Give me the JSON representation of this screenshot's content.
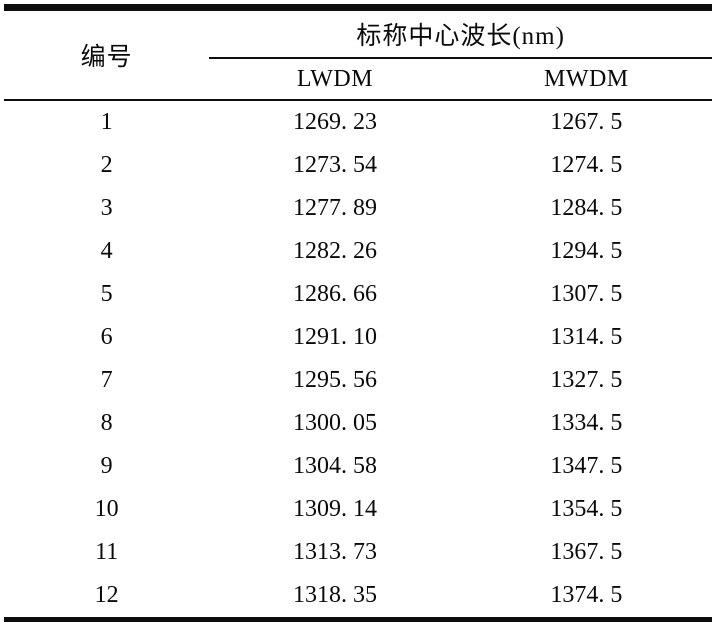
{
  "table": {
    "col1_header": "编号",
    "group_header": "标称中心波长(nm)",
    "sub_headers": {
      "lwdm": "LWDM",
      "mwdm": "MWDM"
    },
    "rows": [
      {
        "id": "1",
        "lwdm": "1269. 23",
        "mwdm": "1267. 5"
      },
      {
        "id": "2",
        "lwdm": "1273. 54",
        "mwdm": "1274. 5"
      },
      {
        "id": "3",
        "lwdm": "1277. 89",
        "mwdm": "1284. 5"
      },
      {
        "id": "4",
        "lwdm": "1282. 26",
        "mwdm": "1294. 5"
      },
      {
        "id": "5",
        "lwdm": "1286. 66",
        "mwdm": "1307. 5"
      },
      {
        "id": "6",
        "lwdm": "1291. 10",
        "mwdm": "1314. 5"
      },
      {
        "id": "7",
        "lwdm": "1295. 56",
        "mwdm": "1327. 5"
      },
      {
        "id": "8",
        "lwdm": "1300. 05",
        "mwdm": "1334. 5"
      },
      {
        "id": "9",
        "lwdm": "1304. 58",
        "mwdm": "1347. 5"
      },
      {
        "id": "10",
        "lwdm": "1309. 14",
        "mwdm": "1354. 5"
      },
      {
        "id": "11",
        "lwdm": "1313. 73",
        "mwdm": "1367. 5"
      },
      {
        "id": "12",
        "lwdm": "1318. 35",
        "mwdm": "1374. 5"
      }
    ]
  },
  "colors": {
    "text": "#0a0a0a",
    "rule": "#0d0d0d",
    "background": "#ffffff"
  },
  "chart_data": {
    "type": "table",
    "title": "标称中心波长(nm)",
    "columns": [
      "编号",
      "LWDM",
      "MWDM"
    ],
    "rows": [
      [
        1,
        1269.23,
        1267.5
      ],
      [
        2,
        1273.54,
        1274.5
      ],
      [
        3,
        1277.89,
        1284.5
      ],
      [
        4,
        1282.26,
        1294.5
      ],
      [
        5,
        1286.66,
        1307.5
      ],
      [
        6,
        1291.1,
        1314.5
      ],
      [
        7,
        1295.56,
        1327.5
      ],
      [
        8,
        1300.05,
        1334.5
      ],
      [
        9,
        1304.58,
        1347.5
      ],
      [
        10,
        1309.14,
        1354.5
      ],
      [
        11,
        1313.73,
        1367.5
      ],
      [
        12,
        1318.35,
        1374.5
      ]
    ]
  }
}
